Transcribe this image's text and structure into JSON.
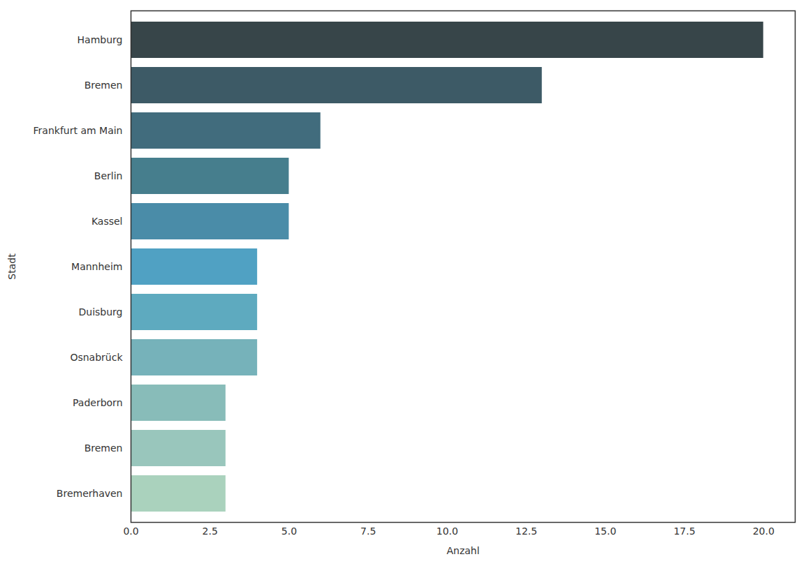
{
  "chart_data": {
    "type": "bar",
    "orientation": "horizontal",
    "x_label": "Anzahl",
    "y_label": "Stadt",
    "categories": [
      "Hamburg",
      "Bremen",
      "Frankfurt am Main",
      "Berlin",
      "Kassel",
      "Mannheim",
      "Duisburg",
      "Osnabrück",
      "Paderborn",
      "Bremen",
      "Bremerhaven"
    ],
    "values": [
      20,
      13,
      6,
      5,
      5,
      4,
      4,
      4,
      3,
      3,
      3
    ],
    "colors": [
      "#374549",
      "#3d5a66",
      "#416c7d",
      "#467e8d",
      "#4a8ca8",
      "#50a1c3",
      "#5eaabf",
      "#76b2ba",
      "#88bcb9",
      "#99c6bc",
      "#aad2bd"
    ],
    "xlim": [
      0,
      21
    ],
    "xticks": [
      {
        "value": 0,
        "label": "0.0"
      },
      2.5,
      {
        "value": 5,
        "label": "5.0"
      },
      7.5,
      {
        "value": 10,
        "label": "10.0"
      },
      12.5,
      {
        "value": 15,
        "label": "15.0"
      },
      17.5,
      {
        "value": 20,
        "label": "20.0"
      }
    ],
    "grid": false
  }
}
